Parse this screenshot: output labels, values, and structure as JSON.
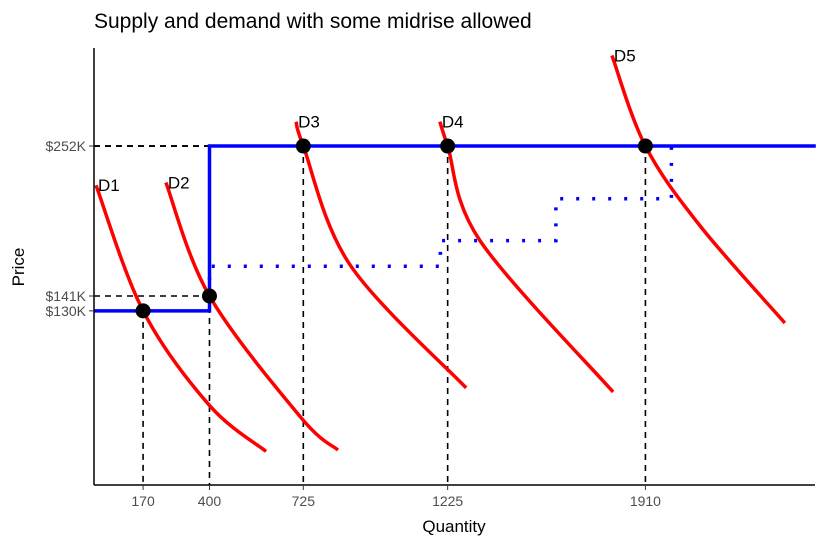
{
  "chart_data": {
    "type": "line",
    "title": "Supply and demand with some midrise allowed",
    "xlabel": "Quantity",
    "ylabel": "Price",
    "xlim": [
      0,
      2500
    ],
    "ylim": [
      0,
      325
    ],
    "grid": false,
    "x_ticks": [
      {
        "value": 170,
        "label": "170"
      },
      {
        "value": 400,
        "label": "400"
      },
      {
        "value": 725,
        "label": "725"
      },
      {
        "value": 1225,
        "label": "1225"
      },
      {
        "value": 1910,
        "label": "1910"
      }
    ],
    "y_ticks": [
      {
        "value": 130,
        "label": "$130K"
      },
      {
        "value": 141,
        "label": "$141K"
      },
      {
        "value": 252,
        "label": "$252K"
      }
    ],
    "colors": {
      "demand": "#ff0000",
      "supply": "#0000ff",
      "guides": "#000000"
    },
    "demand_curves": [
      {
        "name": "D1",
        "points": [
          [
            7,
            223
          ],
          [
            170,
            130
          ],
          [
            400,
            60
          ],
          [
            596,
            26
          ]
        ]
      },
      {
        "name": "D2",
        "points": [
          [
            249,
            225
          ],
          [
            400,
            141
          ],
          [
            717,
            51
          ],
          [
            845,
            27
          ]
        ]
      },
      {
        "name": "D3",
        "points": [
          [
            700,
            270
          ],
          [
            725,
            252
          ],
          [
            887,
            164
          ],
          [
            1289,
            73
          ]
        ]
      },
      {
        "name": "D4",
        "points": [
          [
            1198,
            270
          ],
          [
            1225,
            252
          ],
          [
            1337,
            182
          ],
          [
            1798,
            70
          ]
        ]
      },
      {
        "name": "D5",
        "points": [
          [
            1794,
            319
          ],
          [
            1910,
            252
          ],
          [
            2099,
            193
          ],
          [
            2393,
            121
          ]
        ]
      }
    ],
    "supply_solid": [
      [
        0,
        130
      ],
      [
        400,
        130
      ],
      [
        400,
        252
      ],
      [
        2500,
        252
      ]
    ],
    "supply_dotted": [
      [
        400,
        141
      ],
      [
        400,
        163
      ],
      [
        1200,
        163
      ],
      [
        1200,
        182
      ],
      [
        1600,
        182
      ],
      [
        1600,
        213
      ],
      [
        2000,
        213
      ],
      [
        2000,
        252
      ]
    ],
    "equilibria": [
      [
        170,
        130
      ],
      [
        400,
        141
      ],
      [
        725,
        252
      ],
      [
        1225,
        252
      ],
      [
        1910,
        252
      ]
    ]
  }
}
